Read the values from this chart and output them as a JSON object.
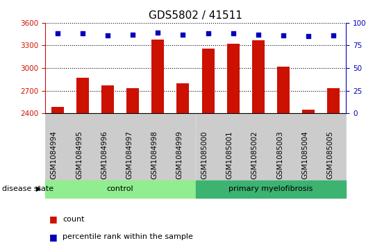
{
  "title": "GDS5802 / 41511",
  "samples": [
    "GSM1084994",
    "GSM1084995",
    "GSM1084996",
    "GSM1084997",
    "GSM1084998",
    "GSM1084999",
    "GSM1085000",
    "GSM1085001",
    "GSM1085002",
    "GSM1085003",
    "GSM1085004",
    "GSM1085005"
  ],
  "counts": [
    2490,
    2870,
    2770,
    2730,
    3380,
    2800,
    3260,
    3320,
    3370,
    3020,
    2450,
    2730
  ],
  "percentile_ranks": [
    88,
    88,
    86,
    87,
    89,
    87,
    88,
    88,
    87,
    86,
    85,
    86
  ],
  "groups": [
    {
      "label": "control",
      "start": 0,
      "end": 6,
      "color": "#90EE90"
    },
    {
      "label": "primary myelofibrosis",
      "start": 6,
      "end": 12,
      "color": "#3CB371"
    }
  ],
  "bar_color": "#cc1100",
  "dot_color": "#0000bb",
  "ylim_left": [
    2400,
    3600
  ],
  "ylim_right": [
    0,
    100
  ],
  "yticks_left": [
    2400,
    2700,
    3000,
    3300,
    3600
  ],
  "yticks_right": [
    0,
    25,
    50,
    75,
    100
  ],
  "tick_color_left": "#cc1100",
  "tick_color_right": "#0000bb",
  "grid_color": "black",
  "bg_color": "#ffffff",
  "xtick_bg_color": "#cccccc",
  "disease_state_label": "disease state",
  "legend_count_label": "count",
  "legend_pct_label": "percentile rank within the sample",
  "bar_width": 0.5,
  "title_fontsize": 11,
  "tick_fontsize": 7.5,
  "label_fontsize": 8
}
